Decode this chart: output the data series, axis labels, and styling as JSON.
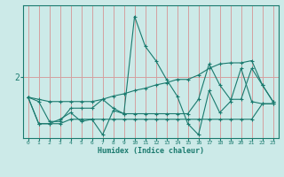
{
  "xlabel": "Humidex (Indice chaleur)",
  "ylabel": "",
  "bg_color": "#cceae8",
  "line_color": "#1a7a6e",
  "grid_color": "#d4a0a0",
  "xlim": [
    -0.5,
    23.5
  ],
  "ylim": [
    1.45,
    2.65
  ],
  "yticks": [
    2.0
  ],
  "ytick_labels": [
    "2"
  ],
  "xticks": [
    0,
    1,
    2,
    3,
    4,
    5,
    6,
    7,
    8,
    9,
    10,
    11,
    12,
    13,
    14,
    15,
    16,
    17,
    18,
    19,
    20,
    21,
    22,
    23
  ],
  "series": [
    [
      1.82,
      1.58,
      1.58,
      1.62,
      1.68,
      1.6,
      1.62,
      1.48,
      1.7,
      1.67,
      2.55,
      2.28,
      2.15,
      1.98,
      1.83,
      1.58,
      1.48,
      1.88,
      1.68,
      1.78,
      2.08,
      1.78,
      1.76,
      1.76
    ],
    [
      1.82,
      1.58,
      1.58,
      1.58,
      1.62,
      1.62,
      1.62,
      1.62,
      1.62,
      1.62,
      1.62,
      1.62,
      1.62,
      1.62,
      1.62,
      1.62,
      1.62,
      1.62,
      1.62,
      1.62,
      1.62,
      1.62,
      1.76,
      1.76
    ],
    [
      1.82,
      1.78,
      1.6,
      1.6,
      1.72,
      1.72,
      1.72,
      1.8,
      1.72,
      1.67,
      1.67,
      1.67,
      1.67,
      1.67,
      1.67,
      1.67,
      1.8,
      2.12,
      1.93,
      1.8,
      1.8,
      2.08,
      1.93,
      1.78
    ],
    [
      1.82,
      1.8,
      1.78,
      1.78,
      1.78,
      1.78,
      1.78,
      1.8,
      1.83,
      1.85,
      1.88,
      1.9,
      1.93,
      1.95,
      1.98,
      1.98,
      2.02,
      2.08,
      2.12,
      2.13,
      2.13,
      2.15,
      1.93,
      1.78
    ]
  ]
}
